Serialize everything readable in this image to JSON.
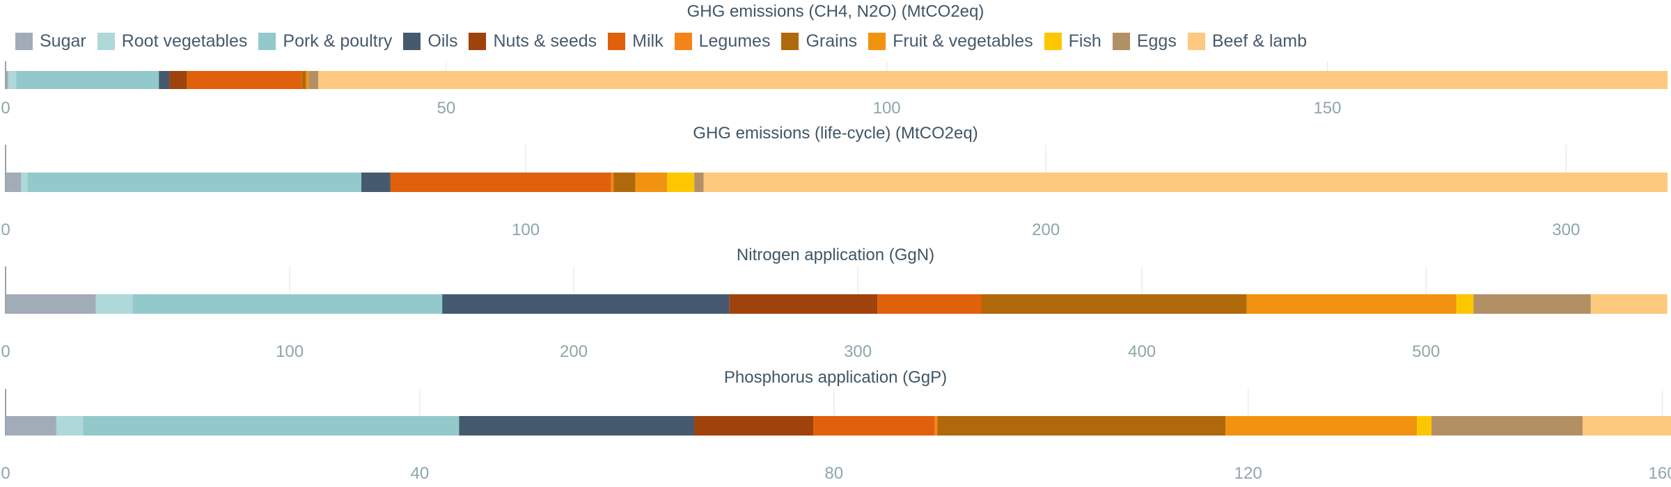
{
  "chart_data": {
    "type": "bar",
    "orientation": "horizontal",
    "stacked": true,
    "grid": true,
    "legend_position": "top-left",
    "series": [
      {
        "name": "Sugar",
        "color": "#a2acb8"
      },
      {
        "name": "Root vegetables",
        "color": "#afd8d8"
      },
      {
        "name": "Pork & poultry",
        "color": "#93c9ca"
      },
      {
        "name": "Oils",
        "color": "#455a6e"
      },
      {
        "name": "Nuts & seeds",
        "color": "#a0420c"
      },
      {
        "name": "Milk",
        "color": "#e0600c"
      },
      {
        "name": "Legumes",
        "color": "#f58418"
      },
      {
        "name": "Grains",
        "color": "#b0690a"
      },
      {
        "name": "Fruit & vegetables",
        "color": "#f29310"
      },
      {
        "name": "Fish",
        "color": "#fdc700"
      },
      {
        "name": "Eggs",
        "color": "#b39064"
      },
      {
        "name": "Beef & lamb",
        "color": "#fcc97e"
      }
    ],
    "panels": [
      {
        "title": "GHG emissions (CH4, N2O) (MtCO2eq)",
        "ticks": [
          0,
          50,
          100,
          150
        ],
        "xlim": [
          0,
          188.6
        ],
        "values": [
          0.3,
          0.9,
          16.2,
          1.2,
          2.0,
          13.0,
          0.0,
          0.5,
          0.3,
          0.0,
          1.1,
          153.1
        ]
      },
      {
        "title": "GHG emissions (life-cycle) (MtCO2eq)",
        "ticks": [
          0,
          100,
          200,
          300
        ],
        "xlim": [
          0,
          319.5
        ],
        "values": [
          3.0,
          1.2,
          64.2,
          5.6,
          0.0,
          42.4,
          0.5,
          4.2,
          6.1,
          5.2,
          1.8,
          185.3
        ]
      },
      {
        "title": "Nitrogen application (GgN)",
        "ticks": [
          0,
          100,
          200,
          300,
          400,
          500
        ],
        "xlim": [
          0,
          585
        ],
        "values": [
          31.8,
          12.9,
          109.0,
          101.1,
          52.1,
          36.7,
          0.0,
          93.3,
          73.8,
          6.0,
          41.3,
          26.9
        ]
      },
      {
        "title": "Phosphorus application (GgP)",
        "ticks": [
          0,
          40,
          80,
          120,
          160
        ],
        "tick_labels": [
          "0",
          "40",
          "80",
          "120",
          "160"
        ],
        "xlim": [
          0,
          160.5
        ],
        "values": [
          4.9,
          2.6,
          36.3,
          22.7,
          11.5,
          11.7,
          0.3,
          27.8,
          18.5,
          1.4,
          14.6,
          8.7
        ]
      }
    ]
  }
}
